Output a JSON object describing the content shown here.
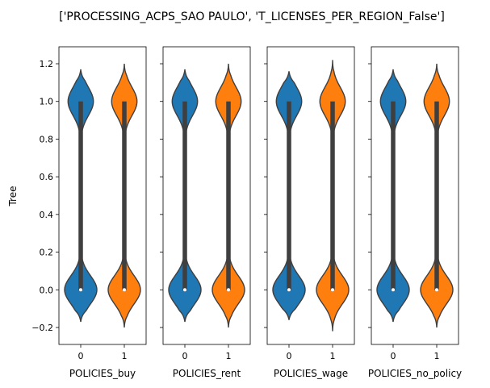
{
  "chart_data": {
    "type": "violin",
    "title": "['PROCESSING_ACPS_SAO PAULO', 'T_LICENSES_PER_REGION_False']",
    "ylabel": "Tree",
    "ylim": [
      -0.29,
      1.29
    ],
    "yticks": [
      -0.2,
      0.0,
      0.2,
      0.4,
      0.6,
      0.8,
      1.0,
      1.2
    ],
    "ytick_labels": [
      "−0.2",
      "0.0",
      "0.2",
      "0.4",
      "0.6",
      "0.8",
      "1.0",
      "1.2"
    ],
    "categories": [
      "0",
      "1"
    ],
    "colors": [
      "#1f77b4",
      "#ff7f0e"
    ],
    "subplots": [
      {
        "xlabel": "POLICIES_buy",
        "violins": [
          {
            "category": "0",
            "min": -0.17,
            "max": 1.17,
            "q1": 0.0,
            "median": 0.0,
            "q3": 1.0
          },
          {
            "category": "1",
            "min": -0.2,
            "max": 1.2,
            "q1": 0.0,
            "median": 0.0,
            "q3": 1.0
          }
        ]
      },
      {
        "xlabel": "POLICIES_rent",
        "violins": [
          {
            "category": "0",
            "min": -0.17,
            "max": 1.17,
            "q1": 0.0,
            "median": 0.0,
            "q3": 1.0
          },
          {
            "category": "1",
            "min": -0.2,
            "max": 1.2,
            "q1": 0.0,
            "median": 0.0,
            "q3": 1.0
          }
        ]
      },
      {
        "xlabel": "POLICIES_wage",
        "violins": [
          {
            "category": "0",
            "min": -0.16,
            "max": 1.16,
            "q1": 0.0,
            "median": 0.0,
            "q3": 1.0
          },
          {
            "category": "1",
            "min": -0.22,
            "max": 1.22,
            "q1": 0.0,
            "median": 0.0,
            "q3": 1.0
          }
        ]
      },
      {
        "xlabel": "POLICIES_no_policy",
        "violins": [
          {
            "category": "0",
            "min": -0.17,
            "max": 1.17,
            "q1": 0.0,
            "median": 0.0,
            "q3": 1.0
          },
          {
            "category": "1",
            "min": -0.2,
            "max": 1.2,
            "q1": 0.0,
            "median": 0.0,
            "q3": 1.0
          }
        ]
      }
    ]
  }
}
